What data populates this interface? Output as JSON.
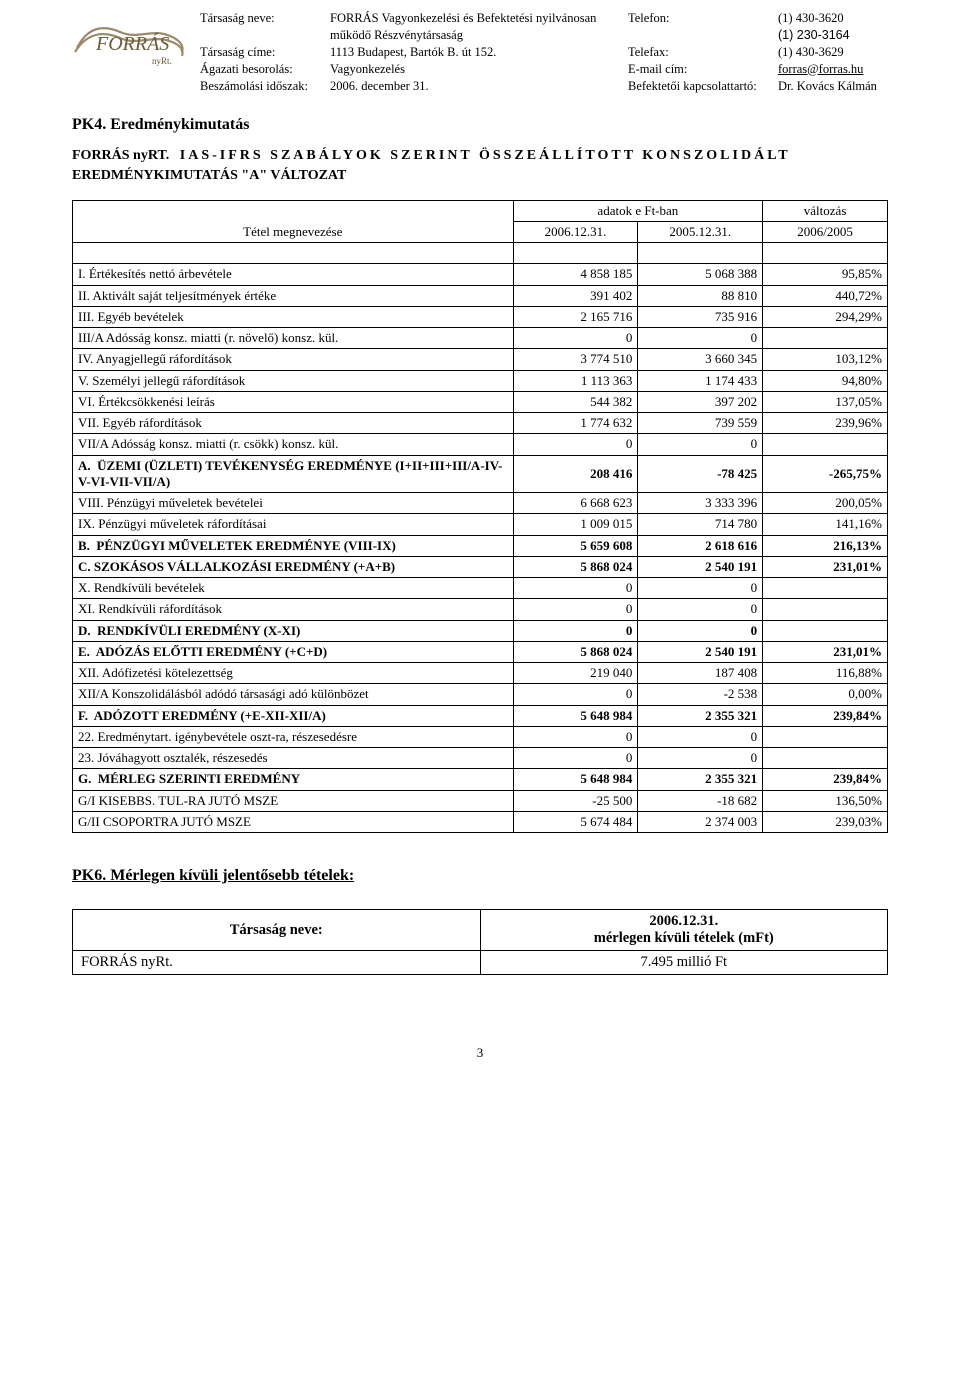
{
  "header": {
    "rows": [
      {
        "label": "Társaság neve:",
        "val1a": "FORRÁS Vagyonkezelési és Befektetési nyilvánosan",
        "val1b": "működő Részvénytársaság",
        "label2a": "Telefon:",
        "val2a": "(1) 430-3620",
        "label2b": "",
        "val2b": "(1) 230-3164"
      },
      {
        "label": "Társaság címe:",
        "val1": "1113 Budapest, Bartók B. út 152.",
        "label2": "Telefax:",
        "val2": "(1) 430-3629"
      },
      {
        "label": "Ágazati besorolás:",
        "val1": "Vagyonkezelés",
        "label2": "E-mail cím:",
        "val2": "forras@forras.hu",
        "underline": true
      },
      {
        "label": "Beszámolási időszak:",
        "val1": "2006. december 31.",
        "label2": "Befektetői kapcsolattartó:",
        "val2": "Dr. Kovács Kálmán"
      }
    ]
  },
  "section_title": "PK4. Eredménykimutatás",
  "subtitle_line1_a": "FORRÁS nyRT.",
  "subtitle_line1_b": "IAS-IFRS SZABÁLYOK SZERINT ÖSSZEÁLLÍTOTT KONSZOLIDÁLT",
  "subtitle_line2": "EREDMÉNYKIMUTATÁS \"A\" VÁLTOZAT",
  "table_header": {
    "name": "Tétel megnevezése",
    "span_top": "adatok e Ft-ban",
    "col3_top": "változás",
    "col1": "2006.12.31.",
    "col2": "2005.12.31.",
    "col3": "2006/2005"
  },
  "rows": [
    {
      "name": "I. Értékesítés nettó árbevétele",
      "a": "4 858 185",
      "b": "5 068 388",
      "c": "95,85%"
    },
    {
      "name": "II. Aktivált saját teljesítmények értéke",
      "a": "391 402",
      "b": "88 810",
      "c": "440,72%"
    },
    {
      "name": "III. Egyéb bevételek",
      "a": "2 165 716",
      "b": "735 916",
      "c": "294,29%"
    },
    {
      "name": "III/A Adósság konsz. miatti (r. növelő) konsz. kül.",
      "a": "0",
      "b": "0",
      "c": ""
    },
    {
      "name": "IV. Anyagjellegű ráfordítások",
      "a": "3 774 510",
      "b": "3 660 345",
      "c": "103,12%"
    },
    {
      "name": "V. Személyi jellegű ráfordítások",
      "a": "1 113 363",
      "b": "1 174 433",
      "c": "94,80%"
    },
    {
      "name": "VI. Értékcsökkenési leírás",
      "a": "544 382",
      "b": "397 202",
      "c": "137,05%"
    },
    {
      "name": "VII. Egyéb ráfordítások",
      "a": "1 774 632",
      "b": "739 559",
      "c": "239,96%"
    },
    {
      "name": "VII/A Adósság konsz. miatti (r. csökk) konsz. kül.",
      "a": "0",
      "b": "0",
      "c": ""
    },
    {
      "name": "A.  ÜZEMI (ÜZLETI) TEVÉKENYSÉG EREDMÉNYE (I+II+III+III/A-IV-V-VI-VII-VII/A)",
      "a": "208 416",
      "b": "-78 425",
      "c": "-265,75%",
      "bold": true
    },
    {
      "name": "VIII. Pénzügyi műveletek bevételei",
      "a": "6 668 623",
      "b": "3 333 396",
      "c": "200,05%"
    },
    {
      "name": "IX. Pénzügyi műveletek ráfordításai",
      "a": "1 009 015",
      "b": "714 780",
      "c": "141,16%"
    },
    {
      "name": "B.  PÉNZÜGYI MŰVELETEK EREDMÉNYE (VIII-IX)",
      "a": "5 659 608",
      "b": "2 618 616",
      "c": "216,13%",
      "bold": true
    },
    {
      "name": "C. SZOKÁSOS VÁLLALKOZÁSI EREDMÉNY (+A+B)",
      "a": "5 868 024",
      "b": "2 540 191",
      "c": "231,01%",
      "bold": true
    },
    {
      "name": "X.  Rendkívüli bevételek",
      "a": "0",
      "b": "0",
      "c": ""
    },
    {
      "name": "XI. Rendkívüli ráfordítások",
      "a": "0",
      "b": "0",
      "c": ""
    },
    {
      "name": "D.  RENDKÍVÜLI EREDMÉNY (X-XI)",
      "a": "0",
      "b": "0",
      "c": "",
      "bold": true
    },
    {
      "name": "E.  ADÓZÁS ELŐTTI EREDMÉNY (+C+D)",
      "a": "5 868 024",
      "b": "2 540 191",
      "c": "231,01%",
      "bold": true
    },
    {
      "name": "XII. Adófizetési kötelezettség",
      "a": "219 040",
      "b": "187 408",
      "c": "116,88%"
    },
    {
      "name": "XII/A Konszolidálásból adódó társasági adó különbözet",
      "a": "0",
      "b": "-2 538",
      "c": "0,00%"
    },
    {
      "name": "F.  ADÓZOTT EREDMÉNY (+E-XII-XII/A)",
      "a": "5 648 984",
      "b": "2 355 321",
      "c": "239,84%",
      "bold": true
    },
    {
      "name": "  22. Eredménytart. igénybevétele oszt-ra, részesedésre",
      "a": "0",
      "b": "0",
      "c": ""
    },
    {
      "name": "  23. Jóváhagyott osztalék, részesedés",
      "a": "0",
      "b": "0",
      "c": ""
    },
    {
      "name": "G.  MÉRLEG SZERINTI EREDMÉNY",
      "a": "5 648 984",
      "b": "2 355 321",
      "c": "239,84%",
      "bold": true
    },
    {
      "name": "G/I KISEBBS. TUL-RA JUTÓ MSZE",
      "a": "-25 500",
      "b": "-18 682",
      "c": "136,50%"
    },
    {
      "name": "G/II CSOPORTRA JUTÓ MSZE",
      "a": "5 674 484",
      "b": "2 374 003",
      "c": "239,03%"
    }
  ],
  "pk6_title": "PK6. Mérlegen kívüli jelentősebb tételek:",
  "small_table": {
    "h1": "Társaság neve:",
    "h2a": "2006.12.31.",
    "h2b": "mérlegen kívüli tételek (mFt)",
    "r1a": "FORRÁS nyRt.",
    "r1b": "7.495 millió Ft"
  },
  "page_number": "3",
  "logo_text": "FORRÁS",
  "logo_sub": "nyRt."
}
